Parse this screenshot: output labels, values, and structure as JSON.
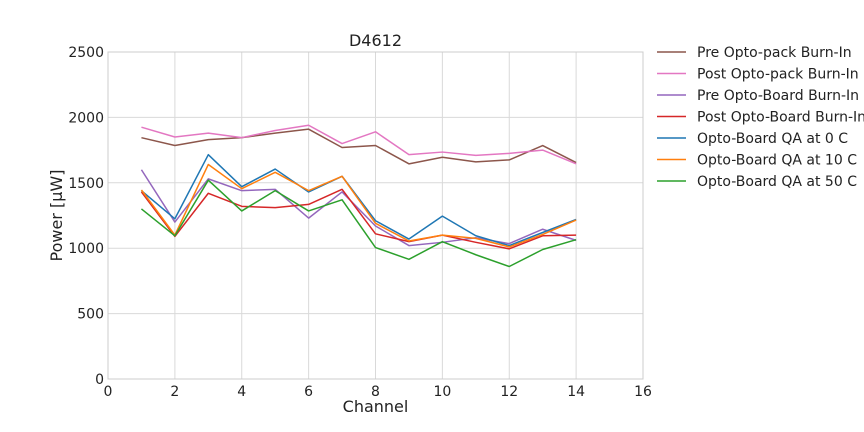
{
  "chart_data": {
    "type": "line",
    "title": "D4612",
    "xlabel": "Channel",
    "ylabel": "Power [μW]",
    "xlim": [
      0,
      16
    ],
    "ylim": [
      0,
      2500
    ],
    "xticks": [
      0,
      2,
      4,
      6,
      8,
      10,
      12,
      14,
      16
    ],
    "yticks": [
      0,
      500,
      1000,
      1500,
      2000,
      2500
    ],
    "grid": true,
    "legend_position": "outside-right-top",
    "x": [
      1,
      2,
      3,
      4,
      5,
      6,
      7,
      8,
      9,
      10,
      11,
      12,
      13,
      14
    ],
    "series": [
      {
        "name": "Pre Opto-pack Burn-In",
        "color": "#8c564b",
        "values": [
          1845,
          1785,
          1830,
          1845,
          1880,
          1910,
          1770,
          1785,
          1645,
          1695,
          1660,
          1675,
          1785,
          1655
        ]
      },
      {
        "name": "Post Opto-pack Burn-In",
        "color": "#e377c2",
        "values": [
          1925,
          1850,
          1880,
          1845,
          1900,
          1940,
          1800,
          1890,
          1715,
          1735,
          1710,
          1725,
          1750,
          1645
        ]
      },
      {
        "name": "Pre Opto-Board Burn-In",
        "color": "#9467bd",
        "values": [
          1600,
          1200,
          1530,
          1440,
          1450,
          1230,
          1430,
          1170,
          1020,
          1045,
          1080,
          1035,
          1145,
          1060
        ]
      },
      {
        "name": "Post Opto-Board Burn-In",
        "color": "#d62728",
        "values": [
          1430,
          1090,
          1420,
          1320,
          1310,
          1335,
          1450,
          1110,
          1050,
          1100,
          1045,
          995,
          1095,
          1100
        ]
      },
      {
        "name": "Opto-Board QA at 0 C",
        "color": "#1f77b4",
        "values": [
          1440,
          1225,
          1715,
          1470,
          1605,
          1430,
          1550,
          1210,
          1070,
          1245,
          1095,
          1020,
          1120,
          1220
        ]
      },
      {
        "name": "Opto-Board QA at 10 C",
        "color": "#ff7f0e",
        "values": [
          1445,
          1100,
          1640,
          1455,
          1580,
          1440,
          1550,
          1190,
          1055,
          1100,
          1075,
          1010,
          1105,
          1215
        ]
      },
      {
        "name": "Opto-Board QA at 50 C",
        "color": "#2ca02c",
        "values": [
          1300,
          1095,
          1520,
          1285,
          1440,
          1285,
          1370,
          1005,
          915,
          1050,
          950,
          860,
          990,
          1065
        ]
      }
    ]
  }
}
